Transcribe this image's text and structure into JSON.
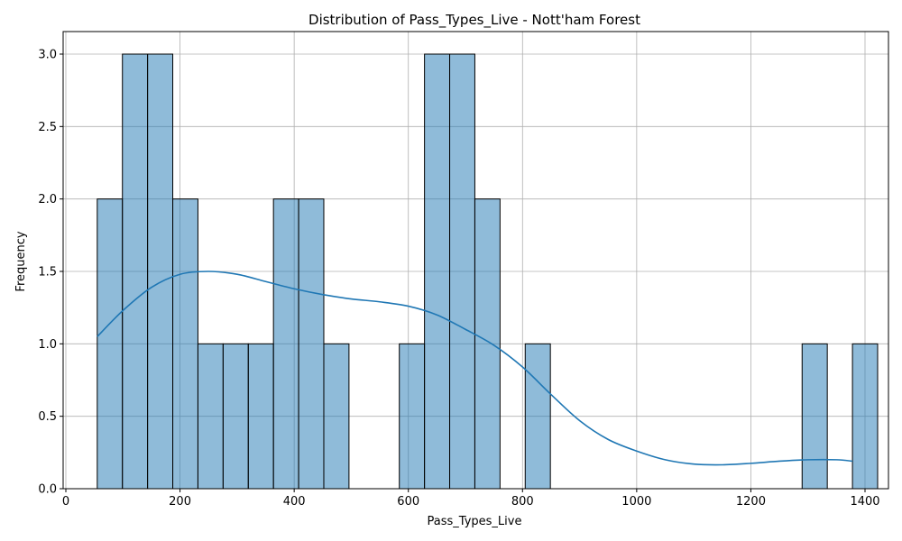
{
  "chart_data": {
    "type": "bar",
    "subtype": "histogram",
    "title": "Distribution of Pass_Types_Live - Nott'ham Forest",
    "xlabel": "Pass_Types_Live",
    "ylabel": "Frequency",
    "xlim": [
      0,
      1400
    ],
    "ylim": [
      0,
      3.0
    ],
    "xticks": [
      0,
      200,
      400,
      600,
      800,
      1000,
      1200,
      1400
    ],
    "yticks": [
      0.0,
      0.5,
      1.0,
      1.5,
      2.0,
      2.5,
      3.0
    ],
    "grid": true,
    "bar_color": "#1f77b4",
    "bin_start": 55,
    "bin_width": 44.1,
    "counts": [
      2,
      3,
      3,
      2,
      1,
      1,
      1,
      2,
      2,
      1,
      0,
      0,
      1,
      3,
      3,
      2,
      0,
      1,
      0,
      0,
      0,
      0,
      0,
      0,
      0,
      0,
      0,
      0,
      1,
      0,
      1
    ],
    "kde": {
      "color": "#1f77b4",
      "x": [
        55,
        100,
        150,
        200,
        250,
        300,
        350,
        400,
        450,
        500,
        550,
        600,
        650,
        700,
        750,
        800,
        850,
        900,
        950,
        1000,
        1050,
        1100,
        1150,
        1200,
        1250,
        1300,
        1350,
        1378
      ],
      "y": [
        1.05,
        1.23,
        1.39,
        1.48,
        1.5,
        1.48,
        1.43,
        1.38,
        1.34,
        1.31,
        1.29,
        1.26,
        1.2,
        1.1,
        0.99,
        0.84,
        0.65,
        0.47,
        0.34,
        0.26,
        0.2,
        0.17,
        0.165,
        0.175,
        0.19,
        0.2,
        0.2,
        0.19
      ]
    }
  }
}
